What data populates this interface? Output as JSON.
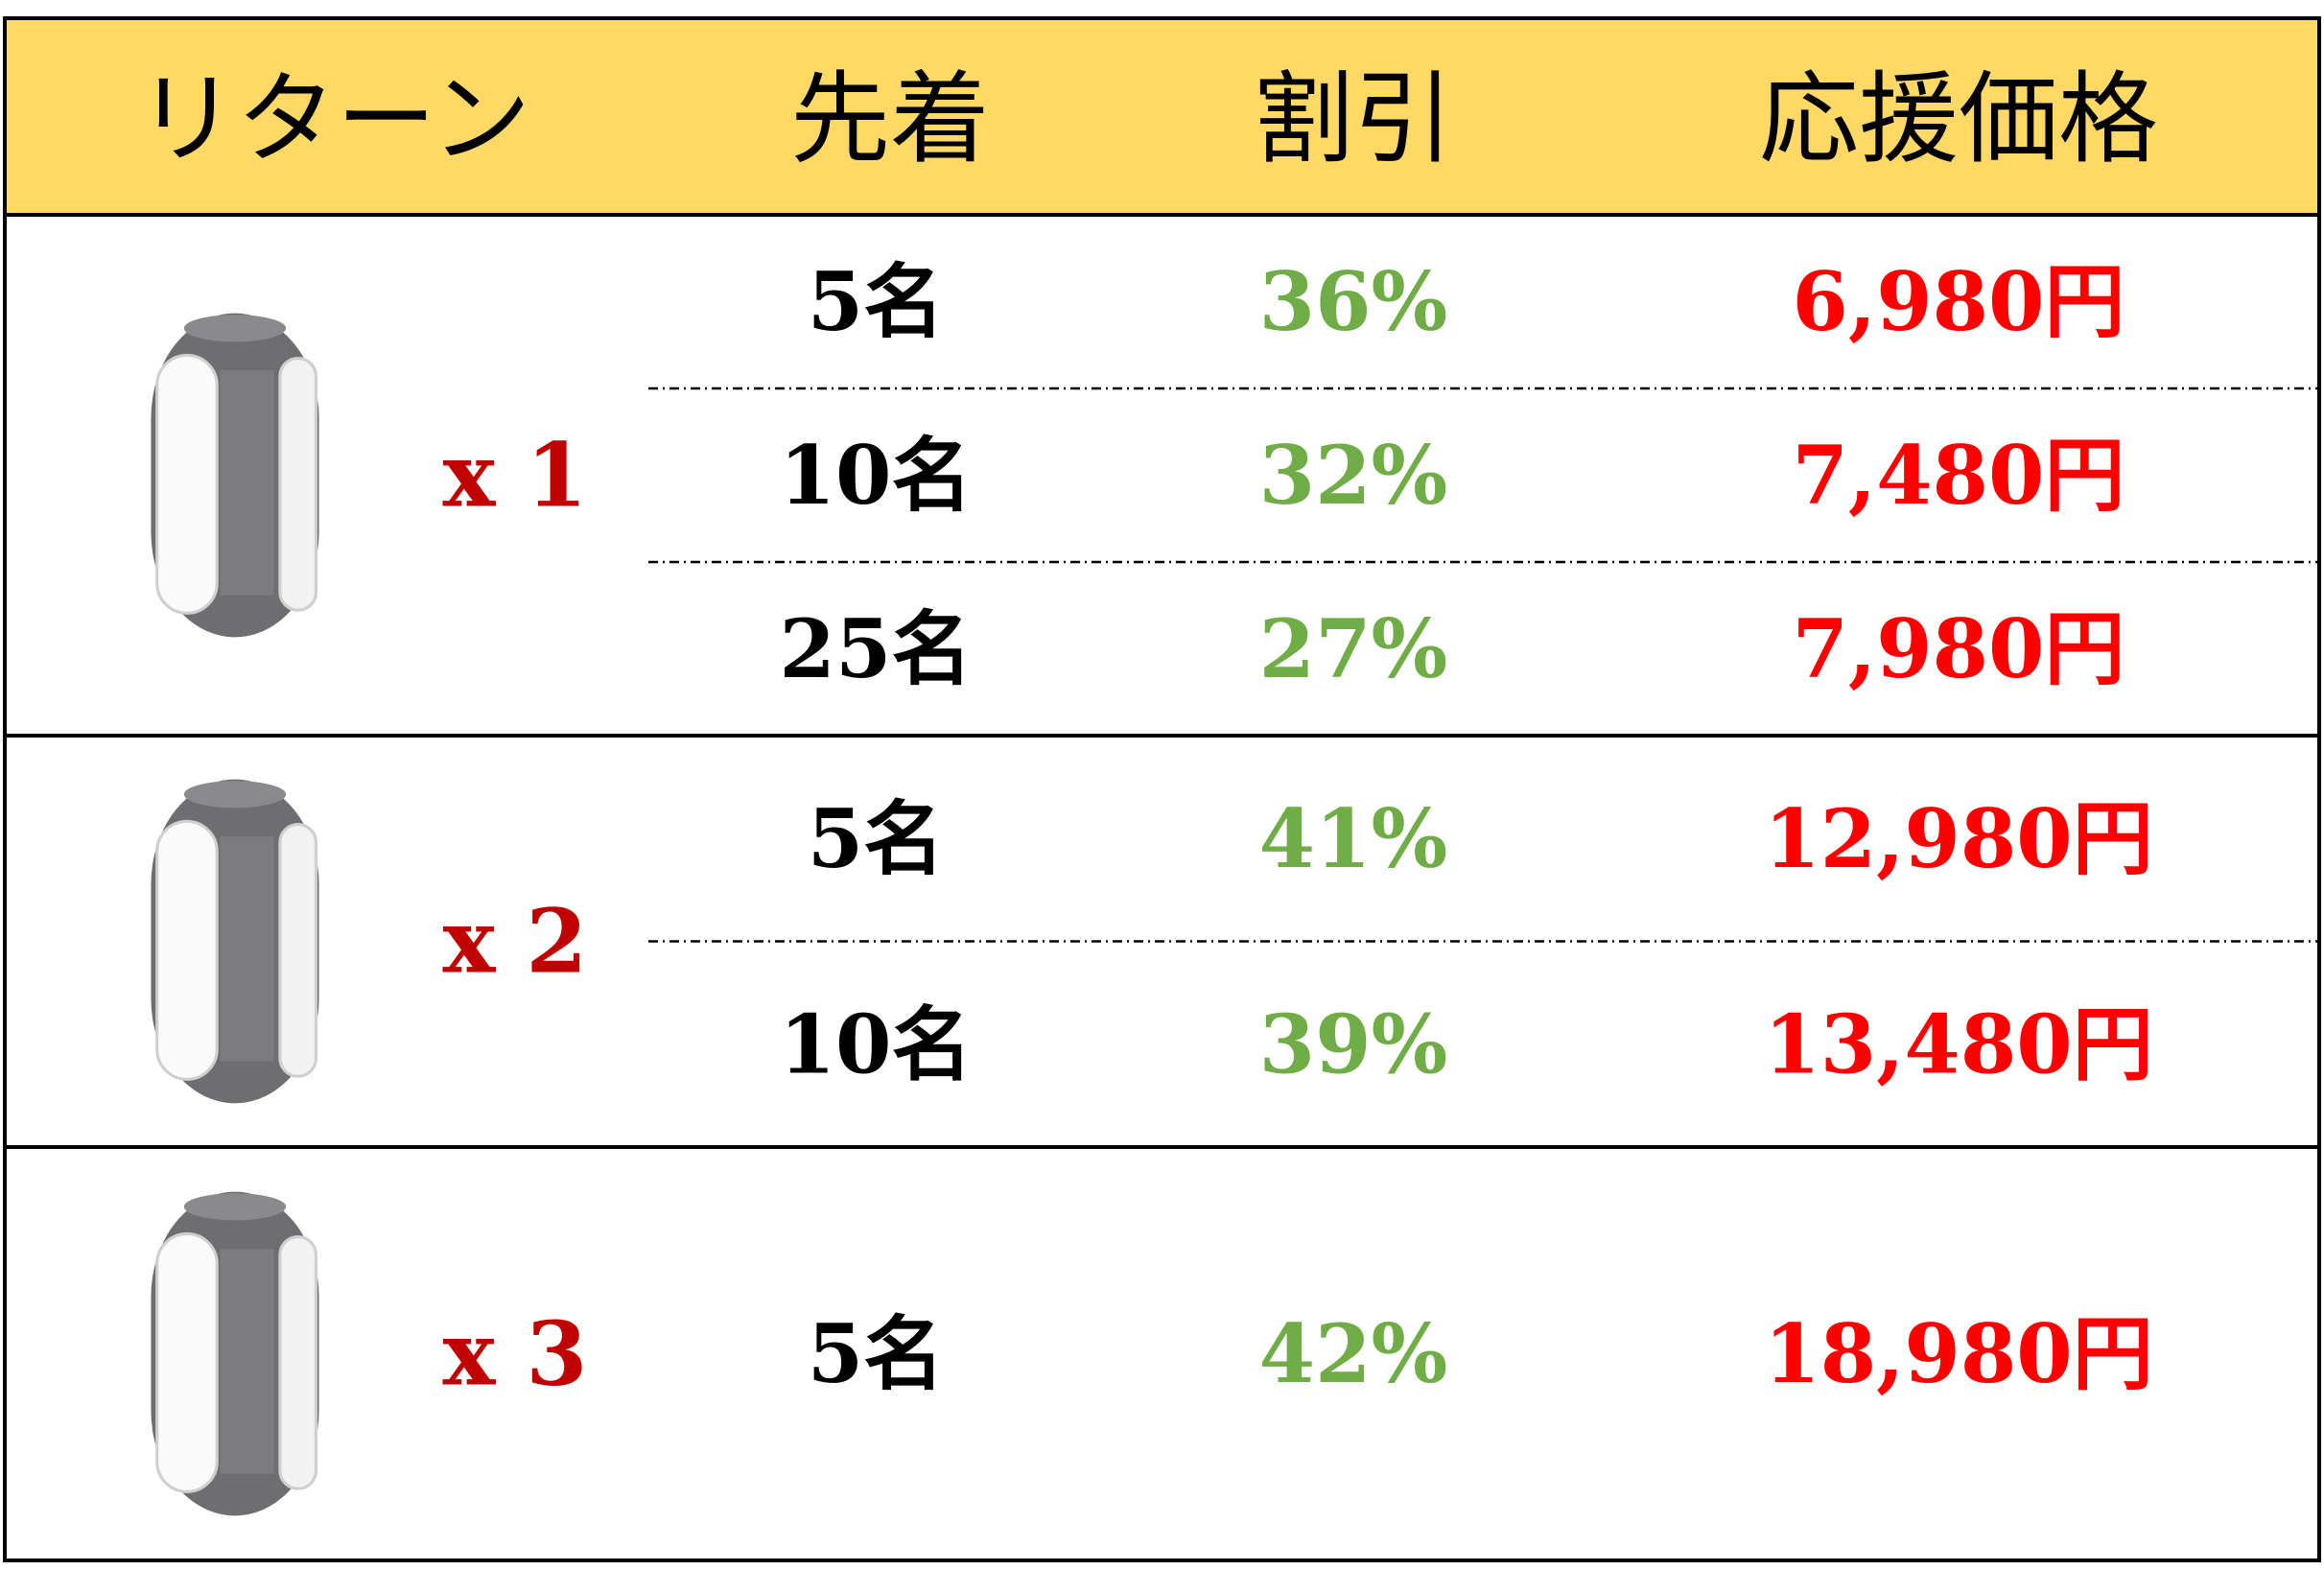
{
  "header": [
    "リターン",
    "先着",
    "割引",
    "応援価格"
  ],
  "groups": [
    {
      "quantity": "x 1",
      "rows": [
        [
          "5名",
          "36%",
          "6,980円"
        ],
        [
          "10名",
          "32%",
          "7,480円"
        ],
        [
          "25名",
          "27%",
          "7,980円"
        ]
      ]
    },
    {
      "quantity": "x 2",
      "rows": [
        [
          "5名",
          "41%",
          "12,980円"
        ],
        [
          "10名",
          "39%",
          "13,480円"
        ]
      ]
    },
    {
      "quantity": "x 3",
      "rows": [
        [
          "5名",
          "42%",
          "18,980円"
        ]
      ]
    }
  ]
}
